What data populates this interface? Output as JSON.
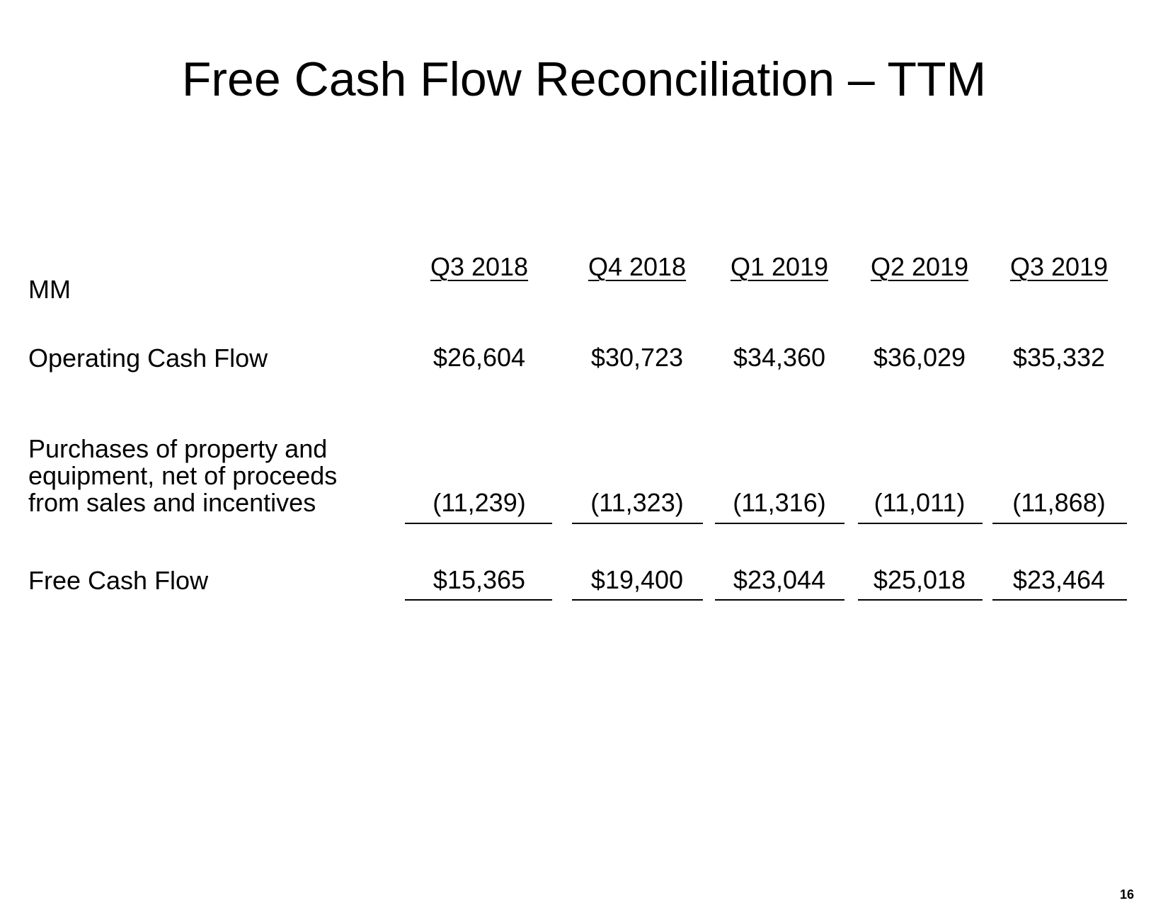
{
  "title": "Free Cash Flow Reconciliation – TTM",
  "unit_label": "MM",
  "columns": [
    "Q3 2018",
    "Q4 2018",
    "Q1 2019",
    "Q2 2019",
    "Q3 2019"
  ],
  "rows": {
    "operating_cash_flow": {
      "label": "Operating Cash Flow",
      "values": [
        "$26,604",
        "$30,723",
        "$34,360",
        "$36,029",
        "$35,332"
      ]
    },
    "purchases": {
      "label_lines": [
        "Purchases of property and",
        "equipment, net of proceeds",
        "from sales and incentives"
      ],
      "values": [
        "(11,239)",
        "(11,323)",
        "(11,316)",
        "(11,011)",
        "(11,868)"
      ]
    },
    "free_cash_flow": {
      "label": "Free Cash Flow",
      "values": [
        "$15,365",
        "$19,400",
        "$23,044",
        "$25,018",
        "$23,464"
      ]
    }
  },
  "page_number": "16"
}
